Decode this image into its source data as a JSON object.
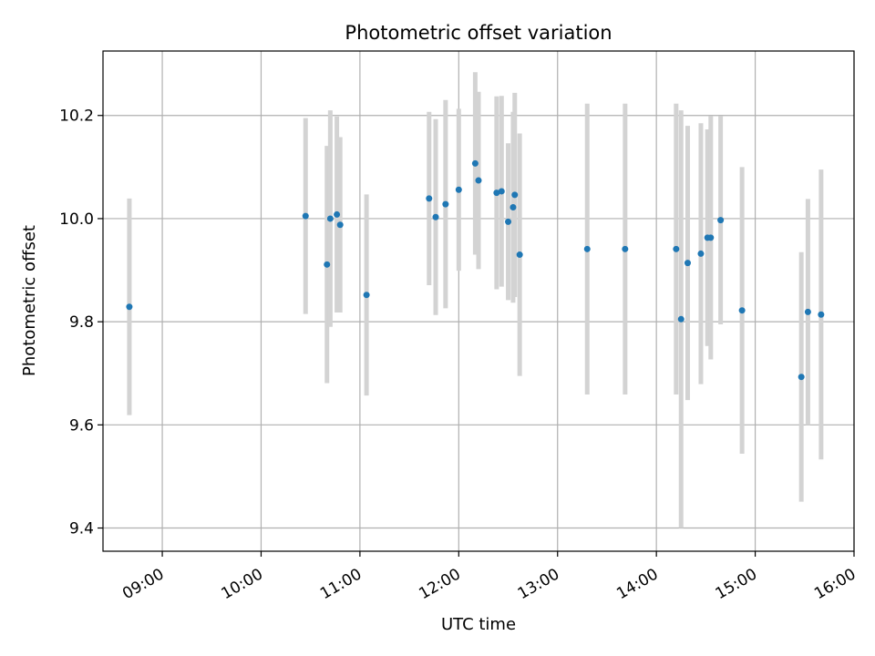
{
  "chart_data": {
    "type": "scatter",
    "title": "Photometric offset variation",
    "xlabel": "UTC time",
    "ylabel": "Photometric offset",
    "x_axis_kind": "time",
    "xlim": [
      "08:24",
      "16:00"
    ],
    "ylim": [
      9.355,
      10.325
    ],
    "x_ticks": [
      "09:00",
      "10:00",
      "11:00",
      "12:00",
      "13:00",
      "14:00",
      "15:00",
      "16:00"
    ],
    "y_ticks": [
      9.4,
      9.6,
      9.8,
      10.0,
      10.2
    ],
    "y_tick_labels": [
      "9.4",
      "9.6",
      "9.8",
      "10.0",
      "10.2"
    ],
    "grid": true,
    "point_color": "#1f77b4",
    "errorbar_color": "#d3d3d3",
    "points": [
      {
        "x": "08:40",
        "y": 9.829,
        "err": 0.21
      },
      {
        "x": "10:27",
        "y": 10.005,
        "err": 0.19
      },
      {
        "x": "10:40",
        "y": 9.911,
        "err": 0.23
      },
      {
        "x": "10:42",
        "y": 10.0,
        "err": 0.21
      },
      {
        "x": "10:46",
        "y": 10.008,
        "err": 0.19
      },
      {
        "x": "10:48",
        "y": 9.988,
        "err": 0.17
      },
      {
        "x": "11:04",
        "y": 9.852,
        "err": 0.195
      },
      {
        "x": "11:42",
        "y": 10.039,
        "err": 0.168
      },
      {
        "x": "11:46",
        "y": 10.003,
        "err": 0.19
      },
      {
        "x": "11:52",
        "y": 10.028,
        "err": 0.202
      },
      {
        "x": "12:00",
        "y": 10.056,
        "err": 0.157
      },
      {
        "x": "12:10",
        "y": 10.107,
        "err": 0.177
      },
      {
        "x": "12:12",
        "y": 10.074,
        "err": 0.172
      },
      {
        "x": "12:23",
        "y": 10.05,
        "err": 0.187
      },
      {
        "x": "12:26",
        "y": 10.053,
        "err": 0.185
      },
      {
        "x": "12:30",
        "y": 9.994,
        "err": 0.152
      },
      {
        "x": "12:33",
        "y": 10.022,
        "err": 0.185
      },
      {
        "x": "12:34",
        "y": 10.046,
        "err": 0.198
      },
      {
        "x": "12:37",
        "y": 9.93,
        "err": 0.235
      },
      {
        "x": "13:18",
        "y": 9.941,
        "err": 0.282
      },
      {
        "x": "13:41",
        "y": 9.941,
        "err": 0.282
      },
      {
        "x": "14:12",
        "y": 9.941,
        "err": 0.282
      },
      {
        "x": "14:15",
        "y": 9.805,
        "err": 0.405
      },
      {
        "x": "14:19",
        "y": 9.914,
        "err": 0.266
      },
      {
        "x": "14:27",
        "y": 9.932,
        "err": 0.253
      },
      {
        "x": "14:31",
        "y": 9.963,
        "err": 0.21
      },
      {
        "x": "14:33",
        "y": 9.963,
        "err": 0.236
      },
      {
        "x": "14:39",
        "y": 9.997,
        "err": 0.202
      },
      {
        "x": "14:52",
        "y": 9.822,
        "err": 0.278
      },
      {
        "x": "15:28",
        "y": 9.693,
        "err": 0.242
      },
      {
        "x": "15:32",
        "y": 9.819,
        "err": 0.219
      },
      {
        "x": "15:40",
        "y": 9.814,
        "err": 0.281
      }
    ]
  }
}
